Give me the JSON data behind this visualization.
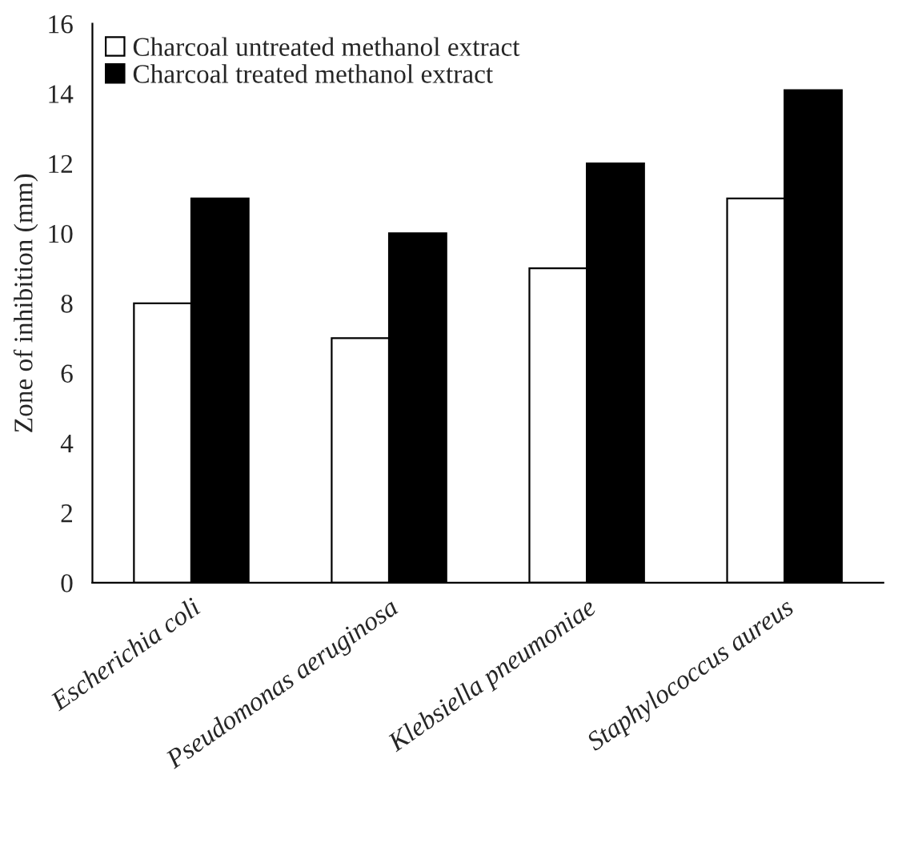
{
  "chart_data": {
    "type": "bar",
    "ylabel": "Zone of inhibition (mm)",
    "categories": [
      "Escherichia coli",
      "Pseudomonas aeruginosa",
      "Klebsiella pneumoniae",
      "Staphylococcus aureus"
    ],
    "series": [
      {
        "name": "Charcoal untreated methanol extract",
        "color": "#ffffff",
        "values": [
          8,
          7,
          9,
          11
        ]
      },
      {
        "name": "Charcoal treated methanol extract",
        "color": "#000000",
        "values": [
          11,
          10,
          12,
          14.1
        ]
      }
    ],
    "ylim": [
      0,
      16
    ],
    "yticks": [
      0,
      2,
      4,
      6,
      8,
      10,
      12,
      14,
      16
    ],
    "grid": false,
    "legend": "top left"
  }
}
